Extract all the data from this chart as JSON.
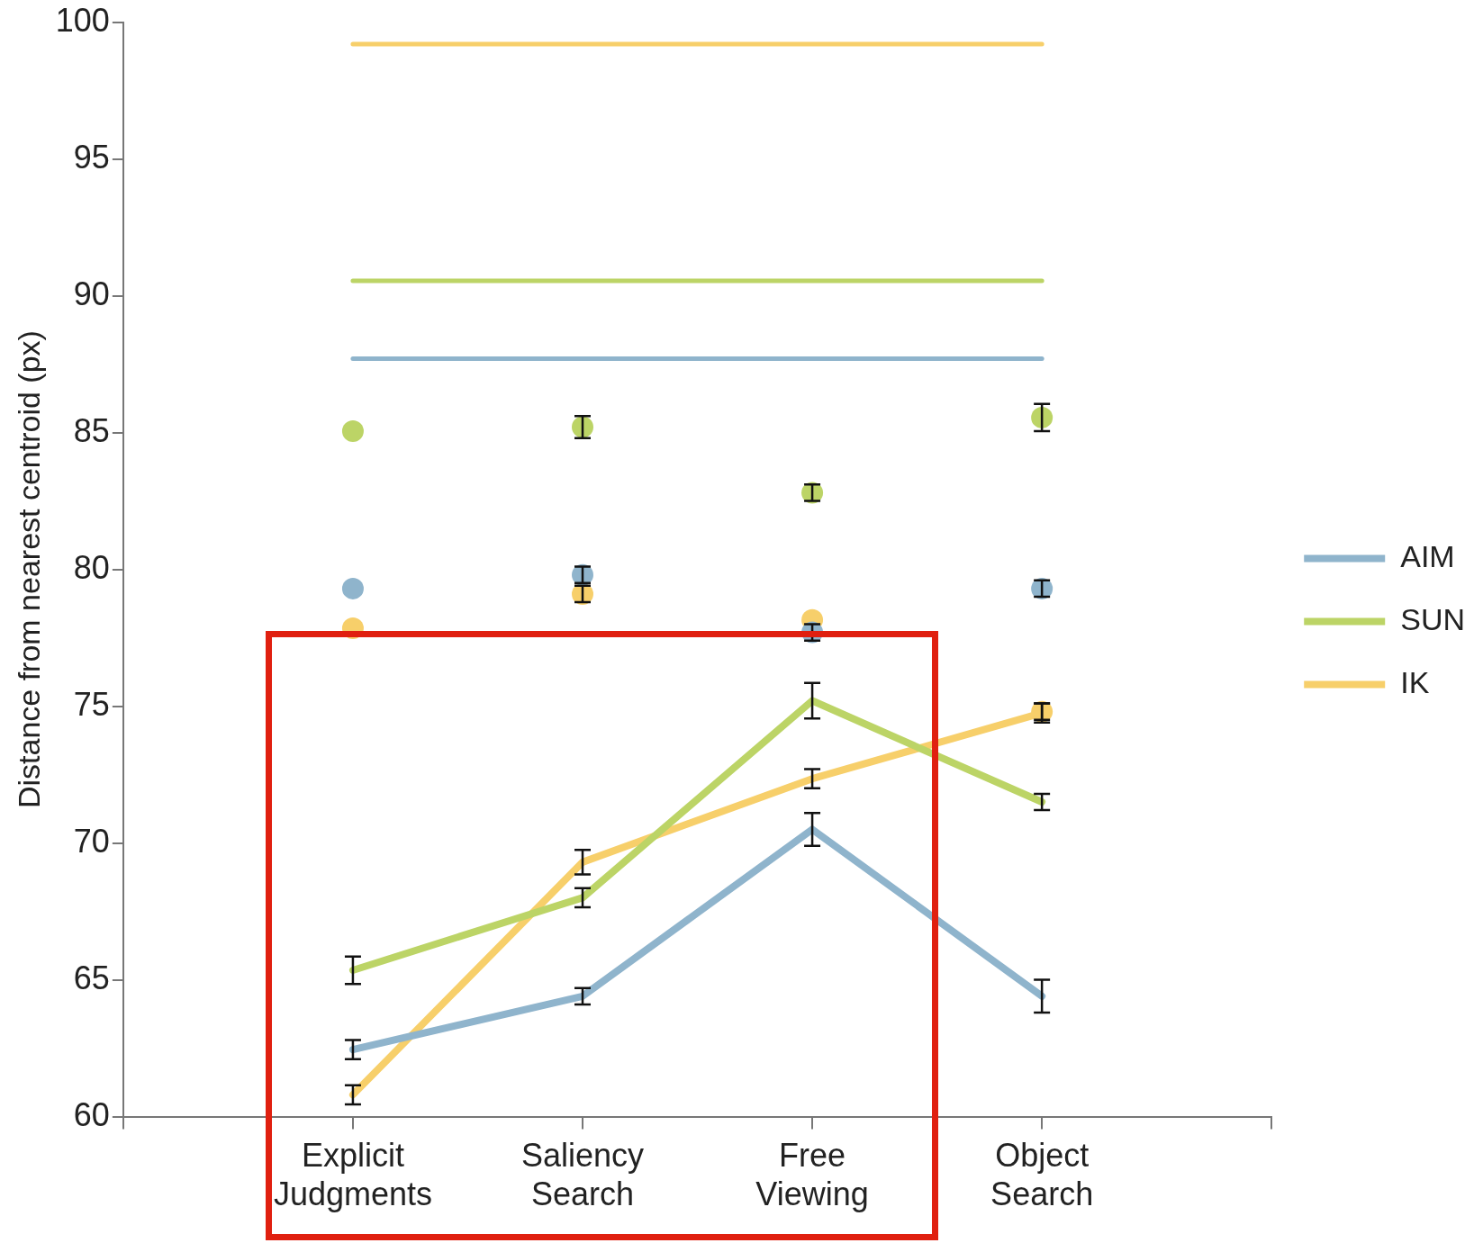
{
  "chart_data": {
    "type": "line",
    "ylabel": "Distance from nearest centroid (px)",
    "categories": [
      null,
      "Explicit Judgments",
      "Saliency Search",
      "Free Viewing",
      "Object Search",
      null
    ],
    "ylim": [
      60,
      100
    ],
    "yticks": [
      60,
      65,
      70,
      75,
      80,
      85,
      90,
      95,
      100
    ],
    "grid": false,
    "legend": "right",
    "line_style": "solid",
    "series": [
      {
        "name": "AIM",
        "type": "line",
        "color": "#8fb4cc",
        "values": [
          null,
          62.45,
          64.4,
          70.5,
          64.4,
          null
        ],
        "errors": [
          null,
          0.35,
          0.3,
          0.6,
          0.6,
          null
        ]
      },
      {
        "name": "SUN",
        "type": "line",
        "color": "#bcd466",
        "values": [
          null,
          65.35,
          68.0,
          75.2,
          71.5,
          null
        ],
        "errors": [
          null,
          0.5,
          0.35,
          0.65,
          0.3,
          null
        ]
      },
      {
        "name": "IK",
        "type": "line",
        "color": "#f7cf6a",
        "values": [
          null,
          60.8,
          69.3,
          72.35,
          74.75,
          null
        ],
        "errors": [
          null,
          0.35,
          0.45,
          0.35,
          0.35,
          null
        ]
      },
      {
        "type": "scatter",
        "marker": "circle",
        "color": "#8fb4cc",
        "values": [
          null,
          79.3,
          79.8,
          77.7,
          79.3,
          null
        ],
        "errors": [
          null,
          null,
          0.3,
          0.3,
          0.3,
          null
        ]
      },
      {
        "type": "scatter",
        "marker": "circle",
        "color": "#bcd466",
        "values": [
          null,
          85.05,
          85.2,
          82.8,
          85.55,
          null
        ],
        "errors": [
          null,
          null,
          0.4,
          0.3,
          0.5,
          null
        ]
      },
      {
        "type": "scatter",
        "marker": "circle",
        "color": "#f7cf6a",
        "values": [
          null,
          77.85,
          79.1,
          78.15,
          74.8,
          null
        ],
        "errors": [
          null,
          null,
          0.3,
          null,
          0.3,
          null
        ]
      },
      {
        "type": "line",
        "color": "#8fb4cc",
        "values": [
          null,
          87.7,
          87.7,
          87.7,
          87.7,
          null
        ]
      },
      {
        "type": "line",
        "color": "#bcd466",
        "values": [
          null,
          90.55,
          90.55,
          90.55,
          90.55,
          null
        ]
      },
      {
        "type": "line",
        "color": "#f7cf6a",
        "values": [
          null,
          99.2,
          99.2,
          99.2,
          99.2,
          null
        ]
      }
    ]
  }
}
